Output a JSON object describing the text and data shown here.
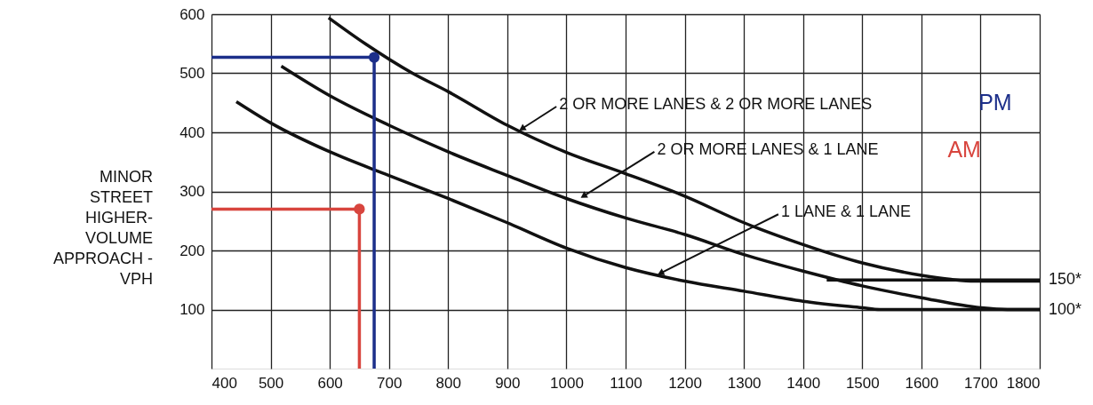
{
  "chart_data": {
    "type": "line",
    "ylabel": "MINOR\nSTREET\nHIGHER-\nVOLUME\nAPPROACH -\nVPH",
    "xlim": [
      400,
      1800
    ],
    "ylim": [
      0,
      600
    ],
    "xticks": [
      400,
      500,
      600,
      700,
      800,
      900,
      1000,
      1100,
      1200,
      1300,
      1400,
      1500,
      1600,
      1700,
      1800
    ],
    "yticks": [
      100,
      200,
      300,
      400,
      500,
      600
    ],
    "grid": true,
    "series": [
      {
        "color": "#111111",
        "x": [
          598,
          660,
          740,
          800,
          900,
          1000,
          1100,
          1200,
          1300,
          1400,
          1500,
          1600,
          1650,
          1690,
          1800
        ],
        "values": [
          594,
          550,
          500,
          469,
          412,
          366,
          330,
          292,
          247,
          210,
          179,
          158,
          151,
          148,
          148
        ]
      },
      {
        "color": "#111111",
        "x": [
          518,
          600,
          700,
          800,
          900,
          1000,
          1100,
          1200,
          1300,
          1400,
          1500,
          1600,
          1700,
          1745,
          1800
        ],
        "values": [
          512,
          462,
          412,
          367,
          327,
          288,
          255,
          227,
          193,
          165,
          140,
          120,
          103,
          100,
          100
        ]
      },
      {
        "color": "#111111",
        "x": [
          442,
          500,
          600,
          700,
          800,
          900,
          1000,
          1100,
          1200,
          1300,
          1400,
          1500,
          1530,
          1800
        ],
        "values": [
          452,
          416,
          367,
          327,
          288,
          247,
          204,
          171,
          148,
          131,
          114,
          103,
          100,
          100
        ]
      },
      {
        "color": "#111111",
        "x": [
          1440,
          1800
        ],
        "values": [
          150,
          150
        ]
      },
      {
        "name": "PM",
        "color": "#1c2f8a",
        "x": [
          400,
          675,
          675
        ],
        "values": [
          527,
          527,
          0
        ]
      },
      {
        "name": "AM",
        "color": "#d8453e",
        "x": [
          400,
          650,
          650
        ],
        "values": [
          270,
          270,
          0
        ]
      },
      {
        "type": "scatter",
        "color": "#1c2f8a",
        "x": [
          675
        ],
        "values": [
          527
        ]
      },
      {
        "type": "scatter",
        "color": "#d8453e",
        "x": [
          650
        ],
        "values": [
          270
        ]
      }
    ],
    "annotations": [
      {
        "text": "2 OR MORE LANES & 2 OR MORE LANES",
        "x": 920,
        "y": 403
      },
      {
        "text": "2 OR MORE LANES & 1 LANE",
        "x": 1024,
        "y": 289
      },
      {
        "text": "1 LANE & 1 LANE",
        "x": 1154,
        "y": 159
      },
      {
        "text": "150*",
        "x": 1800,
        "y": 150
      },
      {
        "text": "100*",
        "x": 1800,
        "y": 100
      }
    ]
  }
}
